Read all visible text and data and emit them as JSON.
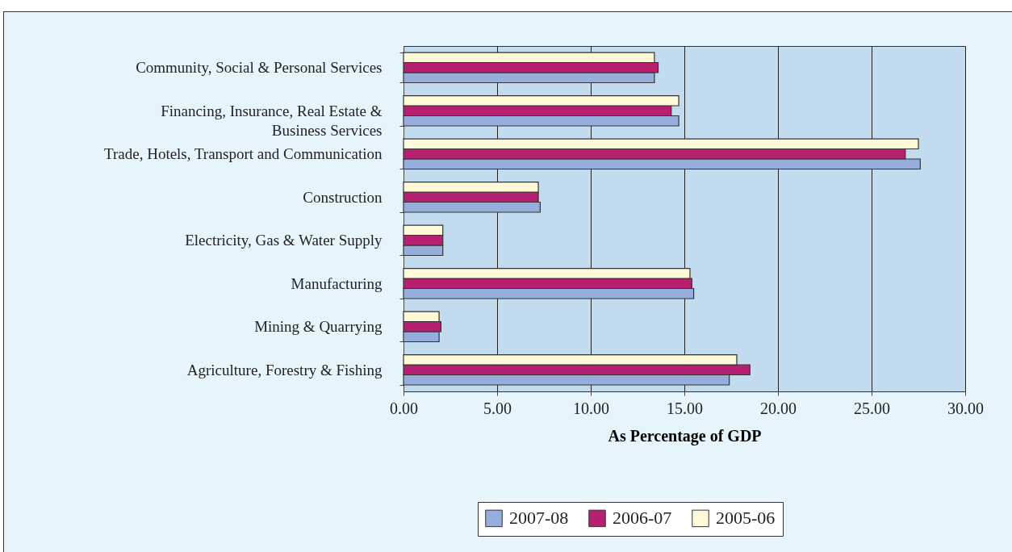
{
  "chart_data": {
    "type": "bar",
    "orientation": "horizontal",
    "xlabel": "As Percentage of GDP",
    "categories": [
      "Community, Social & Personal  Services",
      "Financing, Insurance, Real Estate & Business Services",
      "Trade, Hotels, Transport and Communication",
      "Construction",
      "Electricity, Gas & Water Supply",
      "Manufacturing",
      "Mining & Quarrying",
      "Agriculture, Forestry & Fishing"
    ],
    "series": [
      {
        "name": "2007-08",
        "color": "#95aedb",
        "values": [
          13.4,
          14.7,
          27.6,
          7.3,
          2.1,
          15.5,
          1.9,
          17.4
        ]
      },
      {
        "name": "2006-07",
        "color": "#b72070",
        "values": [
          13.6,
          14.3,
          26.8,
          7.2,
          2.1,
          15.4,
          2.0,
          18.5
        ]
      },
      {
        "name": "2005-06",
        "color": "#fff9d8",
        "values": [
          13.4,
          14.7,
          27.5,
          7.2,
          2.1,
          15.3,
          1.9,
          17.8
        ]
      }
    ],
    "xlim": [
      0,
      30
    ],
    "xticks": [
      {
        "value": 0,
        "label": "0.00"
      },
      {
        "value": 5,
        "label": "5.00"
      },
      {
        "value": 10,
        "label": "10.00"
      },
      {
        "value": 15,
        "label": "15.00"
      },
      {
        "value": 20,
        "label": "20.00"
      },
      {
        "value": 25,
        "label": "25.00"
      },
      {
        "value": 30,
        "label": "30.00"
      }
    ],
    "grid": "x",
    "legend": "bottom"
  }
}
